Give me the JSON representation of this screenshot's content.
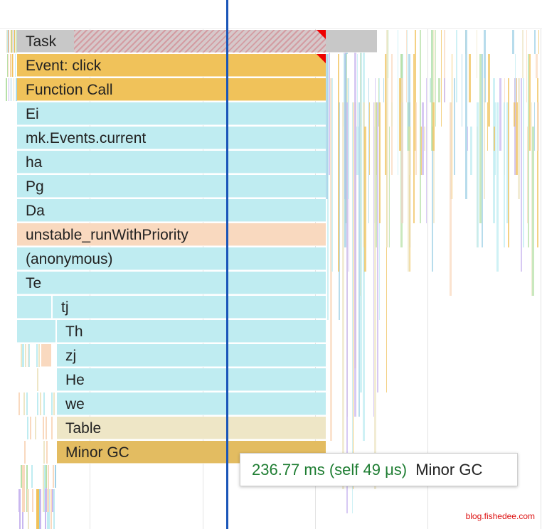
{
  "colors": {
    "task": "#c8c8c8",
    "event": "#f0c25a",
    "function_call": "#f0c25a",
    "js_frame": "#bfecf1",
    "peach_frame": "#f9d9bf",
    "table_frame": "#eee6c6",
    "gc_frame": "#e3bc61",
    "playhead": "#1a55b8",
    "tooltip_time": "#1e7d32"
  },
  "flame": {
    "task": "Task",
    "event": "Event: click",
    "function_call": "Function Call",
    "frames": [
      "Ei",
      "mk.Events.current",
      "ha",
      "Pg",
      "Da",
      "unstable_runWithPriority",
      "(anonymous)",
      "Te",
      "tj",
      "Th",
      "zj",
      "He",
      "we",
      "Table",
      "Minor GC"
    ]
  },
  "tooltip": {
    "time": "236.77 ms (self 49 μs)",
    "name": "Minor GC"
  },
  "watermark": "blog.fishedee.com"
}
